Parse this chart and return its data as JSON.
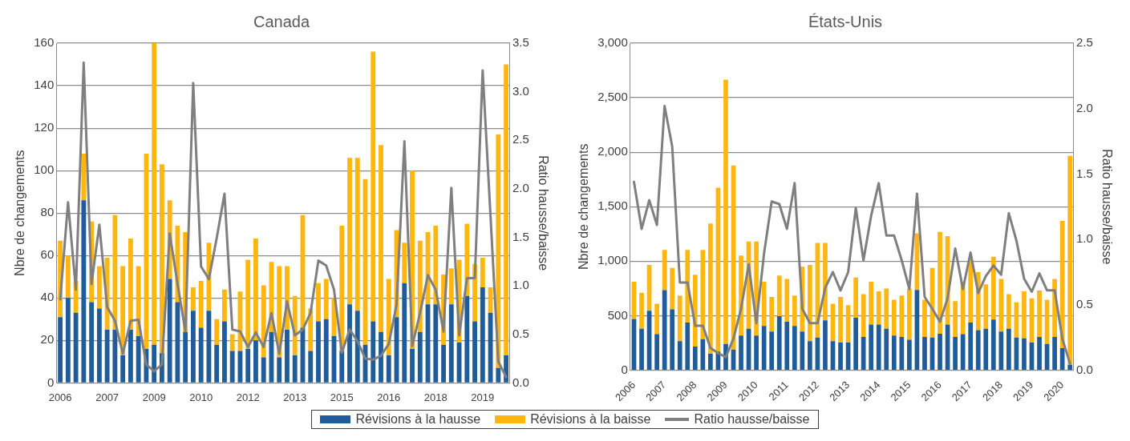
{
  "chart_data": [
    {
      "type": "bar",
      "title": "Canada",
      "ylabel": "Nbre de changements",
      "y2label": "Ratio hausse/baisse",
      "stacked": true,
      "grid": "y",
      "legend": "bottom",
      "marker": "none",
      "categories": [
        "2006",
        null,
        null,
        null,
        null,
        null,
        "2007",
        null,
        null,
        null,
        null,
        null,
        "2009",
        null,
        null,
        null,
        null,
        null,
        "2010",
        null,
        null,
        null,
        null,
        null,
        "2012",
        null,
        null,
        null,
        null,
        null,
        "2013",
        null,
        null,
        null,
        null,
        null,
        "2015",
        null,
        null,
        null,
        null,
        null,
        "2016",
        null,
        null,
        null,
        null,
        null,
        "2018",
        null,
        null,
        null,
        null,
        null,
        "2019",
        null,
        null,
        null
      ],
      "ylim": [
        0,
        160
      ],
      "yticks": [
        0,
        20,
        40,
        60,
        80,
        100,
        120,
        140,
        160
      ],
      "y2lim": [
        0,
        3.5
      ],
      "y2ticks": [
        {
          "value": 0,
          "label": "0.0"
        },
        {
          "value": 0.5,
          "label": "0.5"
        },
        {
          "value": 1,
          "label": "1.0"
        },
        {
          "value": 1.5,
          "label": "1.5"
        },
        {
          "value": 2,
          "label": "2.0"
        },
        {
          "value": 2.5,
          "label": "2.5"
        },
        {
          "value": 3,
          "label": "3.0"
        },
        {
          "value": 3.5,
          "label": "3.5"
        }
      ],
      "series": [
        {
          "name": "Révisions à la hausse",
          "color": "#1f5c99",
          "values": [
            31,
            40,
            33,
            86,
            38,
            35,
            25,
            25,
            13,
            25,
            22,
            16,
            18,
            14,
            49,
            38,
            24,
            34,
            26,
            34,
            18,
            29,
            15,
            15,
            16,
            20,
            12,
            24,
            12,
            25,
            13,
            26,
            15,
            29,
            30,
            22,
            15,
            37,
            34,
            18,
            29,
            24,
            13,
            31,
            47,
            16,
            24,
            37,
            37,
            18,
            37,
            19,
            41,
            29,
            45,
            33,
            7,
            13
          ]
        },
        {
          "name": "Révisions à la baisse",
          "color": "#ffb70f",
          "values": [
            36,
            20,
            15,
            22,
            38,
            20,
            34,
            54,
            42,
            43,
            33,
            92,
            142,
            89,
            37,
            36,
            47,
            11,
            22,
            32,
            12,
            15,
            8,
            28,
            42,
            48,
            34,
            33,
            43,
            30,
            28,
            53,
            20,
            18,
            19,
            18,
            59,
            69,
            72,
            78,
            127,
            88,
            36,
            41,
            19,
            84,
            43,
            34,
            37,
            33,
            17,
            39,
            34,
            27,
            14,
            12,
            110,
            137
          ]
        },
        {
          "name": "Ratio hausse/baisse",
          "type": "line",
          "axis": "y2",
          "color": "#7f7f7f",
          "values": [
            0.86,
            1.86,
            0.96,
            3.3,
            1.02,
            1.63,
            0.78,
            0.64,
            0.3,
            0.64,
            0.65,
            0.19,
            0.12,
            0.19,
            1.54,
            1.02,
            0.53,
            3.09,
            1.2,
            1.07,
            1.49,
            1.95,
            0.55,
            0.53,
            0.37,
            0.52,
            0.37,
            0.72,
            0.3,
            0.84,
            0.49,
            0.55,
            0.72,
            1.26,
            1.21,
            0.96,
            0.31,
            0.55,
            0.43,
            0.25,
            0.24,
            0.28,
            0.4,
            0.81,
            2.49,
            0.38,
            0.72,
            1.11,
            0.96,
            0.53,
            2.01,
            0.49,
            1.08,
            1.08,
            3.22,
            1.73,
            0.22,
            0.06
          ]
        }
      ]
    },
    {
      "type": "bar",
      "title": "États-Unis",
      "ylabel": "Nbre de changements",
      "y2label": "Ratio hausse/baisse",
      "stacked": true,
      "grid": "y",
      "marker": "none",
      "categories": [
        "2006",
        null,
        null,
        null,
        "2007",
        null,
        null,
        null,
        "2008",
        null,
        null,
        null,
        "2009",
        null,
        null,
        null,
        "2010",
        null,
        null,
        null,
        "2011",
        null,
        null,
        null,
        "2012",
        null,
        null,
        null,
        "2013",
        null,
        null,
        null,
        "2014",
        null,
        null,
        null,
        "2015",
        null,
        null,
        null,
        "2016",
        null,
        null,
        null,
        "2017",
        null,
        null,
        null,
        "2018",
        null,
        null,
        null,
        "2019",
        null,
        null,
        null,
        "2020",
        null
      ],
      "ylim": [
        0,
        3000
      ],
      "yticks": [
        0,
        500,
        {
          "value": 1000,
          "label": "1,000"
        },
        {
          "value": 1500,
          "label": "1,500"
        },
        {
          "value": 2000,
          "label": "2,000"
        },
        {
          "value": 2500,
          "label": "2,500"
        },
        {
          "value": 3000,
          "label": "3,000"
        }
      ],
      "y2lim": [
        0,
        2.5
      ],
      "y2ticks": [
        {
          "value": 0,
          "label": "0.0"
        },
        {
          "value": 0.5,
          "label": "0.5"
        },
        {
          "value": 1,
          "label": "1.0"
        },
        {
          "value": 1.5,
          "label": "1.5"
        },
        {
          "value": 2,
          "label": "2.0"
        },
        {
          "value": 2.5,
          "label": "2.5"
        }
      ],
      "series": [
        {
          "color": "#1f5c99",
          "values": [
            470,
            380,
            545,
            330,
            735,
            558,
            266,
            437,
            216,
            284,
            150,
            170,
            241,
            190,
            317,
            380,
            317,
            406,
            355,
            495,
            444,
            406,
            355,
            266,
            300,
            457,
            266,
            254,
            254,
            482,
            305,
            419,
            419,
            380,
            317,
            305,
            279,
            736,
            305,
            300,
            335,
            419,
            305,
            330,
            437,
            368,
            380,
            464,
            355,
            380,
            300,
            292,
            254,
            305,
            241,
            305,
            203,
            50
          ]
        },
        {
          "color": "#ffb70f",
          "values": [
            342,
            330,
            420,
            280,
            369,
            381,
            419,
            667,
            660,
            820,
            1195,
            1505,
            2424,
            1688,
            736,
            800,
            863,
            406,
            317,
            373,
            394,
            279,
            595,
            699,
            868,
            711,
            343,
            418,
            342,
            368,
            393,
            393,
            304,
            369,
            330,
            380,
            470,
            520,
            342,
            639,
            934,
            812,
            329,
            482,
            578,
            533,
            407,
            577,
            483,
            318,
            322,
            431,
            406,
            426,
            406,
            533,
            1167,
            1917
          ]
        },
        {
          "type": "line",
          "axis": "y2",
          "color": "#7f7f7f",
          "values": [
            1.44,
            1.08,
            1.3,
            1.11,
            2.02,
            1.71,
            0.67,
            0.67,
            0.34,
            0.34,
            0.17,
            0.13,
            0.1,
            0.24,
            0.47,
            0.81,
            0.36,
            0.89,
            1.29,
            1.27,
            1.08,
            1.43,
            0.47,
            0.36,
            0.36,
            0.63,
            0.75,
            0.61,
            0.75,
            1.24,
            0.84,
            1.18,
            1.43,
            1.03,
            1.03,
            0.84,
            0.62,
            1.35,
            0.56,
            0.47,
            0.37,
            0.55,
            0.93,
            0.62,
            0.9,
            0.59,
            0.72,
            0.8,
            0.73,
            1.2,
            0.99,
            0.7,
            0.6,
            0.74,
            0.61,
            0.61,
            0.24,
            0.05
          ]
        }
      ]
    }
  ]
}
